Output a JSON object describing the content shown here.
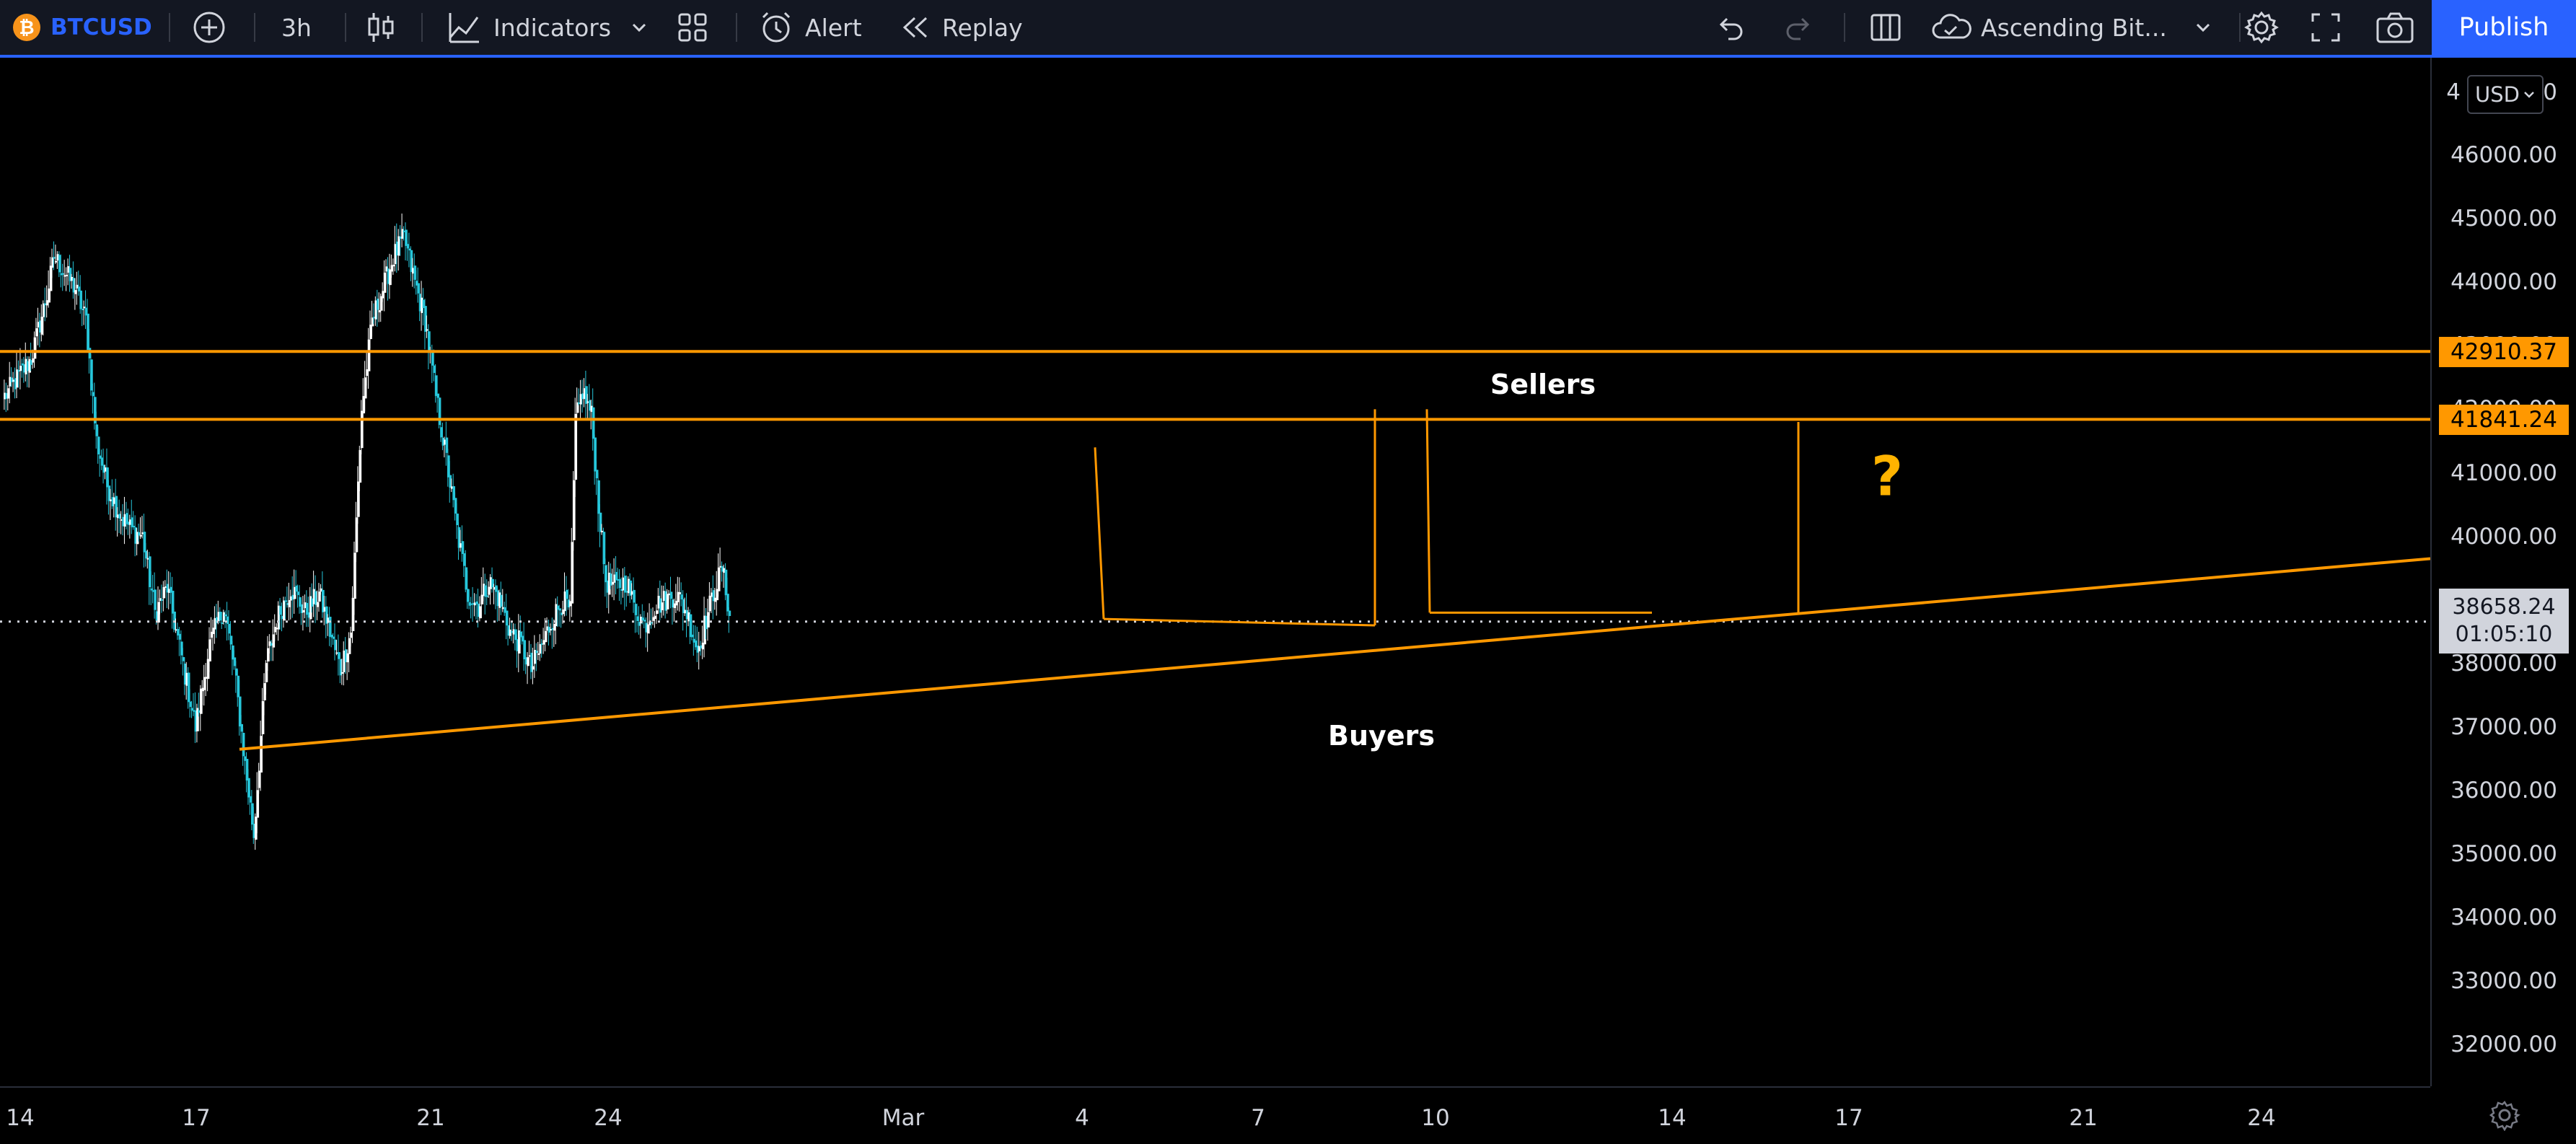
{
  "toolbar": {
    "symbol": "BTCUSD",
    "symbol_icon": "bitcoin-logo",
    "btc_glyph": "₿",
    "interval": "3h",
    "indicators_label": "Indicators",
    "alert_label": "Alert",
    "replay_label": "Replay",
    "layout_name": "Ascending Bit...",
    "publish_label": "Publish",
    "icons": [
      "add-symbol-icon",
      "candles-icon",
      "indicators-icon",
      "chevron-down-icon",
      "templates-icon",
      "alert-icon",
      "replay-icon",
      "undo-icon",
      "redo-icon",
      "layout-icon",
      "cloud-icon",
      "gear-icon",
      "fullscreen-icon",
      "camera-icon"
    ]
  },
  "price_axis": {
    "currency": "USD",
    "ticks": [
      "46000.00",
      "45000.00",
      "44000.00",
      "43000.00",
      "42000.00",
      "41000.00",
      "40000.00",
      "39000.00",
      "38000.00",
      "37000.00",
      "36000.00",
      "35000.00",
      "34000.00",
      "33000.00",
      "32000.00"
    ],
    "top_partial": "4",
    "top_partial_suffix": "0"
  },
  "time_axis": {
    "ticks": [
      "14",
      "17",
      "21",
      "24",
      "Mar",
      "4",
      "7",
      "10",
      "14",
      "17",
      "21",
      "24"
    ]
  },
  "badges": {
    "resistance_upper": "42910.37",
    "resistance_lower": "41841.24",
    "last_price": "38658.24",
    "countdown": "01:05:10"
  },
  "annotations": {
    "sellers": "Sellers",
    "buyers": "Buyers",
    "question": "?"
  },
  "colors": {
    "background": "#000000",
    "toolbar_bg": "#131722",
    "accent": "#2962ff",
    "up_candle": "#ffffff",
    "down_candle": "#26c6da",
    "drawing": "#ff9800",
    "question": "#ffb300"
  },
  "chart_data": {
    "type": "candlestick",
    "symbol": "BTCUSD",
    "interval": "3h",
    "ylim": [
      31500,
      47000
    ],
    "x_ticks": [
      "14",
      "17",
      "21",
      "24",
      "Mar",
      "4",
      "7",
      "10",
      "14",
      "17",
      "21",
      "24"
    ],
    "path": [
      [
        0,
        42200
      ],
      [
        15,
        42800
      ],
      [
        24,
        43800
      ],
      [
        28,
        44400
      ],
      [
        33,
        44200
      ],
      [
        40,
        43900
      ],
      [
        46,
        43400
      ],
      [
        52,
        41500
      ],
      [
        58,
        40800
      ],
      [
        66,
        40300
      ],
      [
        72,
        40100
      ],
      [
        78,
        40000
      ],
      [
        85,
        38800
      ],
      [
        92,
        39200
      ],
      [
        100,
        38100
      ],
      [
        108,
        37000
      ],
      [
        116,
        38300
      ],
      [
        124,
        38900
      ],
      [
        130,
        37900
      ],
      [
        136,
        36400
      ],
      [
        141,
        35300
      ],
      [
        148,
        38000
      ],
      [
        154,
        38700
      ],
      [
        162,
        39200
      ],
      [
        170,
        38800
      ],
      [
        178,
        39100
      ],
      [
        184,
        38500
      ],
      [
        190,
        37900
      ],
      [
        196,
        38500
      ],
      [
        202,
        42000
      ],
      [
        208,
        43400
      ],
      [
        214,
        43900
      ],
      [
        220,
        44400
      ],
      [
        226,
        44700
      ],
      [
        232,
        44000
      ],
      [
        238,
        43400
      ],
      [
        244,
        42200
      ],
      [
        250,
        41200
      ],
      [
        256,
        40100
      ],
      [
        262,
        39100
      ],
      [
        268,
        38900
      ],
      [
        274,
        39300
      ],
      [
        280,
        39000
      ],
      [
        286,
        38500
      ],
      [
        292,
        38300
      ],
      [
        298,
        37900
      ],
      [
        304,
        38300
      ],
      [
        310,
        38700
      ],
      [
        316,
        39000
      ],
      [
        320,
        38800
      ],
      [
        323,
        41800
      ],
      [
        327,
        42300
      ],
      [
        332,
        41900
      ],
      [
        336,
        40500
      ],
      [
        340,
        39300
      ],
      [
        346,
        39200
      ],
      [
        352,
        39300
      ],
      [
        356,
        38900
      ],
      [
        362,
        38600
      ],
      [
        368,
        38900
      ],
      [
        374,
        39000
      ],
      [
        380,
        39100
      ],
      [
        386,
        38800
      ],
      [
        392,
        38200
      ],
      [
        397,
        38700
      ],
      [
        402,
        39200
      ],
      [
        406,
        39500
      ],
      [
        410,
        38800
      ]
    ],
    "drawings": {
      "horizontal_lines": [
        42910.37,
        41841.24
      ],
      "ascending_trendline": {
        "from": [
          0,
          36650
        ],
        "to": [
          572,
          39700
        ]
      },
      "last_price_line": 38658.24
    }
  }
}
